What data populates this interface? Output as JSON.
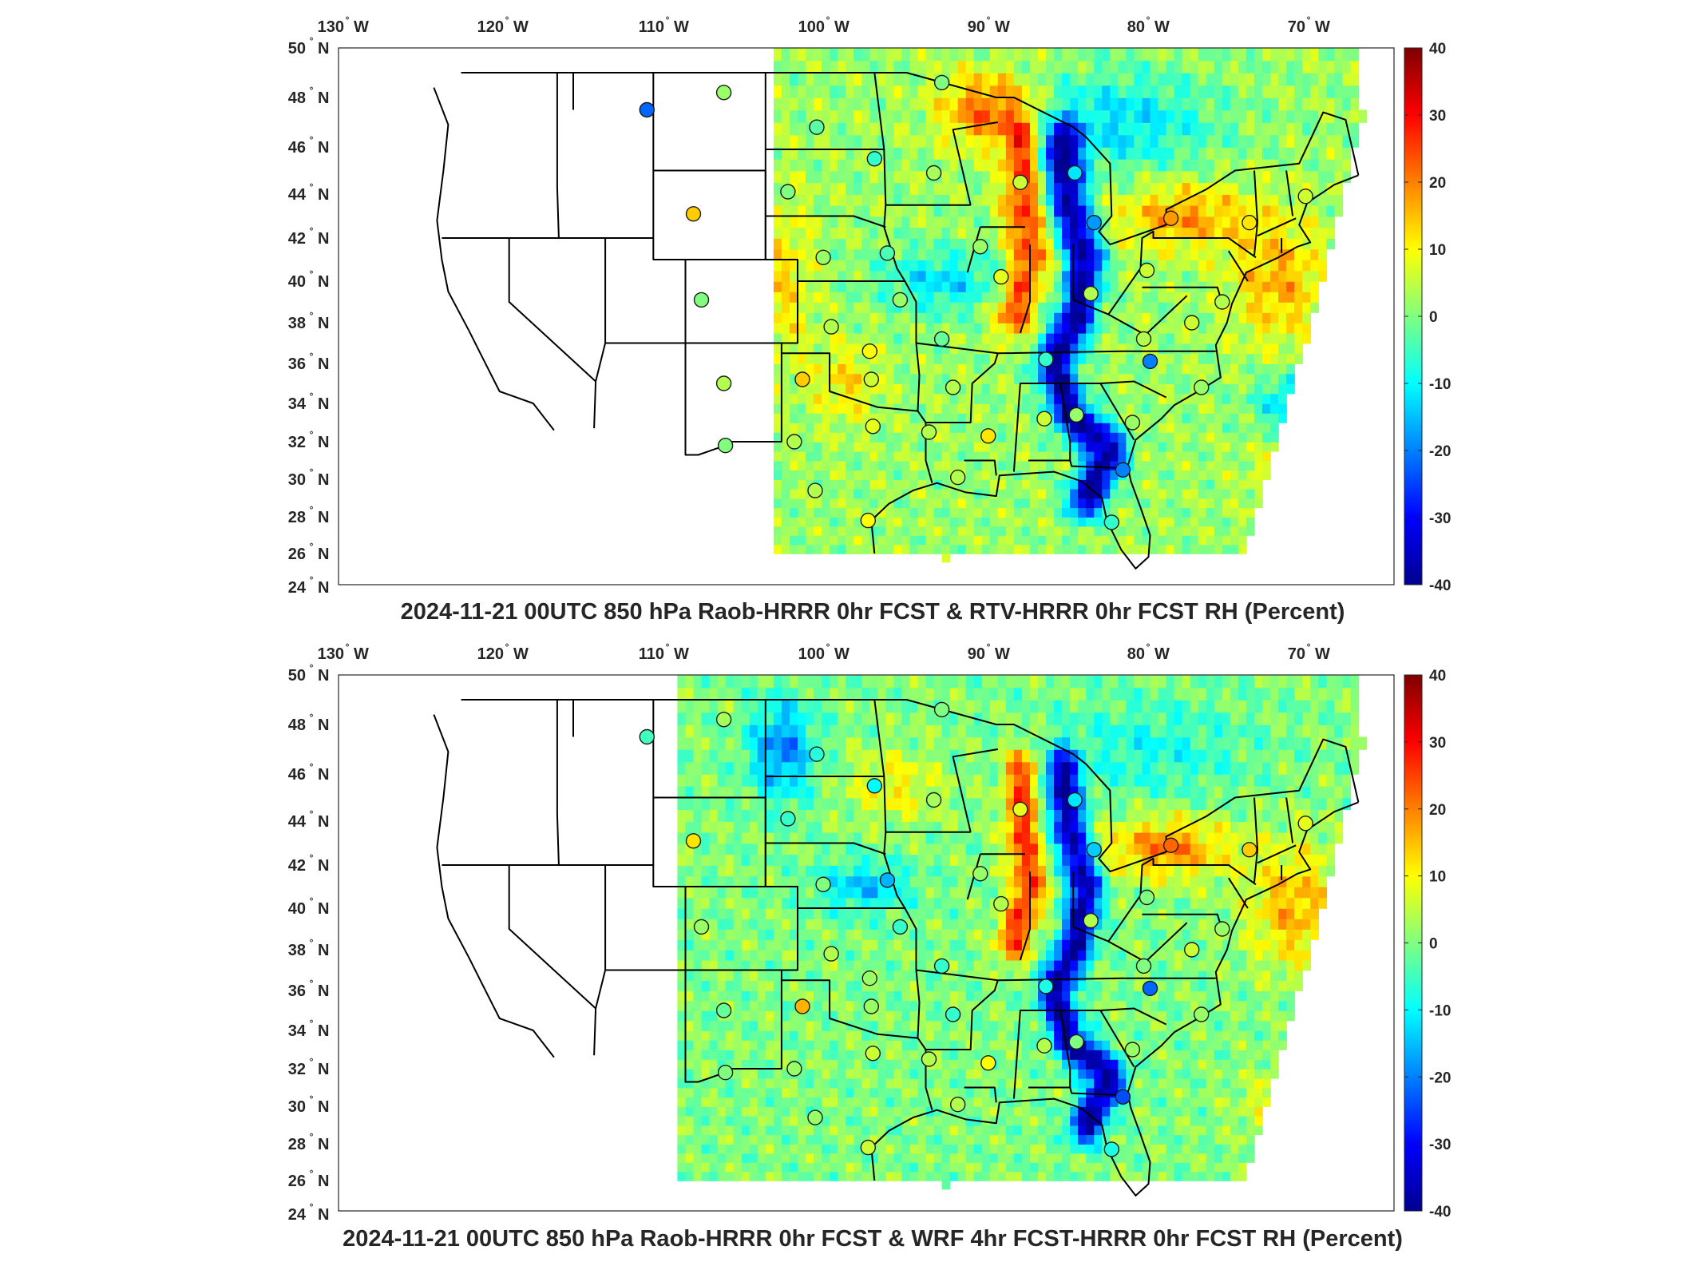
{
  "panels": [
    {
      "id": "top",
      "title": "2024-11-21 00UTC 850 hPa Raob-HRRR 0hr FCST & RTV-HRRR 0hr FCST RH (Percent)",
      "lon_ticks": [
        {
          "v": "130",
          "h": "W"
        },
        {
          "v": "120",
          "h": "W"
        },
        {
          "v": "110",
          "h": "W"
        },
        {
          "v": "100",
          "h": "W"
        },
        {
          "v": "90",
          "h": "W"
        },
        {
          "v": "80",
          "h": "W"
        },
        {
          "v": "70",
          "h": "W"
        }
      ],
      "lat_ticks": [
        {
          "v": "50",
          "h": "N"
        },
        {
          "v": "48",
          "h": "N"
        },
        {
          "v": "46",
          "h": "N"
        },
        {
          "v": "44",
          "h": "N"
        },
        {
          "v": "42",
          "h": "N"
        },
        {
          "v": "40",
          "h": "N"
        },
        {
          "v": "38",
          "h": "N"
        },
        {
          "v": "36",
          "h": "N"
        },
        {
          "v": "34",
          "h": "N"
        },
        {
          "v": "32",
          "h": "N"
        },
        {
          "v": "30",
          "h": "N"
        },
        {
          "v": "28",
          "h": "N"
        },
        {
          "v": "26",
          "h": "N"
        },
        {
          "v": "24",
          "h": "N"
        }
      ],
      "colorbar_ticks": [
        "40",
        "30",
        "20",
        "10",
        "0",
        "-10",
        "-20",
        "-30",
        "-40"
      ]
    },
    {
      "id": "bottom",
      "title": "2024-11-21 00UTC 850 hPa Raob-HRRR 0hr FCST & WRF 4hr FCST-HRRR 0hr FCST RH (Percent)",
      "lon_ticks": [
        {
          "v": "130",
          "h": "W"
        },
        {
          "v": "120",
          "h": "W"
        },
        {
          "v": "110",
          "h": "W"
        },
        {
          "v": "100",
          "h": "W"
        },
        {
          "v": "90",
          "h": "W"
        },
        {
          "v": "80",
          "h": "W"
        },
        {
          "v": "70",
          "h": "W"
        }
      ],
      "lat_ticks": [
        {
          "v": "50",
          "h": "N"
        },
        {
          "v": "48",
          "h": "N"
        },
        {
          "v": "46",
          "h": "N"
        },
        {
          "v": "44",
          "h": "N"
        },
        {
          "v": "42",
          "h": "N"
        },
        {
          "v": "40",
          "h": "N"
        },
        {
          "v": "38",
          "h": "N"
        },
        {
          "v": "36",
          "h": "N"
        },
        {
          "v": "34",
          "h": "N"
        },
        {
          "v": "32",
          "h": "N"
        },
        {
          "v": "30",
          "h": "N"
        },
        {
          "v": "28",
          "h": "N"
        },
        {
          "v": "26",
          "h": "N"
        },
        {
          "v": "24",
          "h": "N"
        }
      ],
      "colorbar_ticks": [
        "40",
        "30",
        "20",
        "10",
        "0",
        "-10",
        "-20",
        "-30",
        "-40"
      ]
    }
  ],
  "colormap": [
    "#00008f",
    "#0000ff",
    "#0080ff",
    "#00ffff",
    "#80ff80",
    "#ffff00",
    "#ff8000",
    "#ff0000",
    "#800000"
  ],
  "colorbar_range": [
    -40,
    40
  ],
  "stations": [
    {
      "lon": -111.4,
      "lat": 47.5,
      "v_top": -22,
      "v_bot": -5
    },
    {
      "lon": -106.6,
      "lat": 48.2,
      "v_top": 2,
      "v_bot": 3
    },
    {
      "lon": -100.8,
      "lat": 46.8,
      "v_top": -3,
      "v_bot": -7
    },
    {
      "lon": -97.2,
      "lat": 45.5,
      "v_top": -6,
      "v_bot": -10
    },
    {
      "lon": -93.5,
      "lat": 44.9,
      "v_top": 3,
      "v_bot": 3
    },
    {
      "lon": -93.0,
      "lat": 48.6,
      "v_top": 0,
      "v_bot": 0
    },
    {
      "lon": -102.6,
      "lat": 44.1,
      "v_top": 0,
      "v_bot": -6
    },
    {
      "lon": -108.5,
      "lat": 43.1,
      "v_top": 14,
      "v_bot": 12
    },
    {
      "lon": -100.4,
      "lat": 41.1,
      "v_top": 2,
      "v_bot": 0
    },
    {
      "lon": -96.4,
      "lat": 41.3,
      "v_top": -4,
      "v_bot": -16
    },
    {
      "lon": -90.6,
      "lat": 41.6,
      "v_top": 2,
      "v_bot": 2
    },
    {
      "lon": -88.1,
      "lat": 44.5,
      "v_top": 6,
      "v_bot": 8
    },
    {
      "lon": -84.7,
      "lat": 44.9,
      "v_top": -12,
      "v_bot": -12
    },
    {
      "lon": -83.5,
      "lat": 42.7,
      "v_top": -18,
      "v_bot": -14
    },
    {
      "lon": -78.7,
      "lat": 42.9,
      "v_top": 18,
      "v_bot": 22
    },
    {
      "lon": -73.8,
      "lat": 42.7,
      "v_top": 12,
      "v_bot": 14
    },
    {
      "lon": -70.3,
      "lat": 43.9,
      "v_top": 6,
      "v_bot": 8
    },
    {
      "lon": -108.0,
      "lat": 39.1,
      "v_top": 0,
      "v_bot": 2
    },
    {
      "lon": -99.9,
      "lat": 37.8,
      "v_top": 4,
      "v_bot": 4
    },
    {
      "lon": -95.6,
      "lat": 39.1,
      "v_top": 2,
      "v_bot": -6
    },
    {
      "lon": -89.3,
      "lat": 40.2,
      "v_top": 8,
      "v_bot": 4
    },
    {
      "lon": -83.7,
      "lat": 39.4,
      "v_top": 4,
      "v_bot": 4
    },
    {
      "lon": -80.2,
      "lat": 40.5,
      "v_top": 6,
      "v_bot": 0
    },
    {
      "lon": -75.5,
      "lat": 39.0,
      "v_top": 4,
      "v_bot": 2
    },
    {
      "lon": -77.4,
      "lat": 38.0,
      "v_top": 6,
      "v_bot": 6
    },
    {
      "lon": -97.5,
      "lat": 36.6,
      "v_top": 10,
      "v_bot": 2
    },
    {
      "lon": -93.0,
      "lat": 37.2,
      "v_top": -2,
      "v_bot": -6
    },
    {
      "lon": -86.5,
      "lat": 36.2,
      "v_top": -6,
      "v_bot": -8
    },
    {
      "lon": -80.4,
      "lat": 37.2,
      "v_top": 4,
      "v_bot": 0
    },
    {
      "lon": -80.0,
      "lat": 36.1,
      "v_top": -20,
      "v_bot": -22
    },
    {
      "lon": -106.6,
      "lat": 35.0,
      "v_top": 4,
      "v_bot": -2
    },
    {
      "lon": -101.7,
      "lat": 35.2,
      "v_top": 14,
      "v_bot": 16
    },
    {
      "lon": -97.4,
      "lat": 35.2,
      "v_top": 6,
      "v_bot": 2
    },
    {
      "lon": -92.3,
      "lat": 34.8,
      "v_top": 4,
      "v_bot": -6
    },
    {
      "lon": -86.6,
      "lat": 33.2,
      "v_top": 6,
      "v_bot": 4
    },
    {
      "lon": -84.6,
      "lat": 33.4,
      "v_top": 2,
      "v_bot": 0
    },
    {
      "lon": -81.1,
      "lat": 33.0,
      "v_top": 2,
      "v_bot": 2
    },
    {
      "lon": -102.2,
      "lat": 32.0,
      "v_top": 4,
      "v_bot": 2
    },
    {
      "lon": -97.3,
      "lat": 32.8,
      "v_top": 8,
      "v_bot": 6
    },
    {
      "lon": -93.8,
      "lat": 32.5,
      "v_top": 4,
      "v_bot": 4
    },
    {
      "lon": -90.1,
      "lat": 32.3,
      "v_top": 12,
      "v_bot": 10
    },
    {
      "lon": -106.5,
      "lat": 31.8,
      "v_top": 0,
      "v_bot": 0
    },
    {
      "lon": -100.9,
      "lat": 29.4,
      "v_top": 4,
      "v_bot": 2
    },
    {
      "lon": -92.0,
      "lat": 30.1,
      "v_top": 4,
      "v_bot": 4
    },
    {
      "lon": -81.7,
      "lat": 30.5,
      "v_top": -20,
      "v_bot": -24
    },
    {
      "lon": -97.6,
      "lat": 27.8,
      "v_top": 10,
      "v_bot": 6
    },
    {
      "lon": -82.4,
      "lat": 27.7,
      "v_top": -6,
      "v_bot": -8
    },
    {
      "lon": -76.8,
      "lat": 34.8,
      "v_top": 2,
      "v_bot": 2
    }
  ]
}
